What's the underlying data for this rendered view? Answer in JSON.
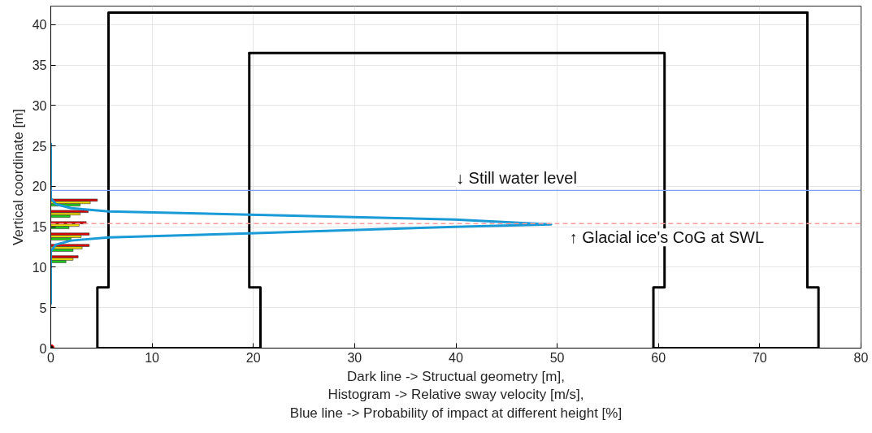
{
  "chart_data": {
    "type": "bar",
    "orientation": "horizontal",
    "xlabel": "Dark line -> Structual geometry [m],\nHistogram -> Relative sway velocity [m/s],\nBlue line -> Probability of impact at different height [%]",
    "ylabel": "Vertical coordinate [m]",
    "xlim": [
      0,
      80
    ],
    "xticks": [
      0,
      10,
      20,
      30,
      40,
      50,
      60,
      70,
      80
    ],
    "ylim": [
      0,
      42.3
    ],
    "yticks": [
      0,
      5,
      10,
      15,
      20,
      25,
      30,
      35,
      40
    ],
    "grid": true,
    "series": [
      {
        "type": "line",
        "color": "#000000",
        "x": [
          0,
          0,
          7.5,
          7.5,
          41.5,
          41.5
        ],
        "values": [
          20.7,
          4.6,
          4.6,
          5.7,
          5.7,
          74.7
        ]
      },
      {
        "type": "line",
        "color": "#000000",
        "x": [
          0,
          0,
          7.5,
          7.5,
          41.5
        ],
        "values": [
          59.5,
          75.8,
          75.8,
          74.7,
          74.7
        ]
      },
      {
        "type": "line",
        "color": "#000000",
        "x": [
          0,
          7.5,
          7.5,
          36.5,
          36.5
        ],
        "values": [
          59.5,
          59.5,
          60.6,
          60.6,
          19.6
        ]
      },
      {
        "type": "line",
        "color": "#000000",
        "x": [
          0,
          7.5,
          7.5,
          36.5
        ],
        "values": [
          20.7,
          20.7,
          19.6,
          19.6
        ]
      },
      {
        "color": "#e00000",
        "x": [
          18.3,
          16.9,
          15.5,
          14.1,
          12.7,
          11.3
        ],
        "values": [
          4.6,
          3.7,
          3.5,
          3.8,
          3.8,
          2.7
        ]
      },
      {
        "color": "#f0e000",
        "x": [
          18.0,
          16.6,
          15.2,
          13.8,
          12.4,
          11.0
        ],
        "values": [
          3.9,
          2.9,
          2.8,
          3.0,
          3.1,
          2.2
        ]
      },
      {
        "color": "#20d020",
        "x": [
          17.7,
          16.3,
          14.9,
          13.5,
          12.1,
          10.7
        ],
        "values": [
          2.9,
          1.9,
          1.8,
          2.0,
          2.2,
          1.5
        ]
      },
      {
        "type": "line",
        "color": "#1a9ad6",
        "x": [
          5.5,
          12,
          12.8,
          13.3,
          13.7,
          14.2,
          15.0,
          15.3,
          15.9,
          16.5,
          16.9,
          17.3,
          17.8,
          18.5,
          25.3
        ],
        "values": [
          0,
          0,
          0.5,
          2,
          5.7,
          19.6,
          39.9,
          49.4,
          39.9,
          19.6,
          5.7,
          2,
          0.5,
          0,
          0
        ]
      },
      {
        "type": "scatter",
        "color": "#000000",
        "x": [
          0
        ],
        "values": [
          0
        ]
      }
    ],
    "ref_lines": [
      {
        "axis": "y",
        "value": 19.5,
        "color": "#7f9fef",
        "line_style": "solid",
        "label": "↓ Still water level"
      },
      {
        "axis": "y",
        "value": 15.4,
        "color": "#ff9a9a",
        "line_style": "dashed",
        "label": "↑ Glacial ice's CoG at SWL"
      }
    ]
  }
}
